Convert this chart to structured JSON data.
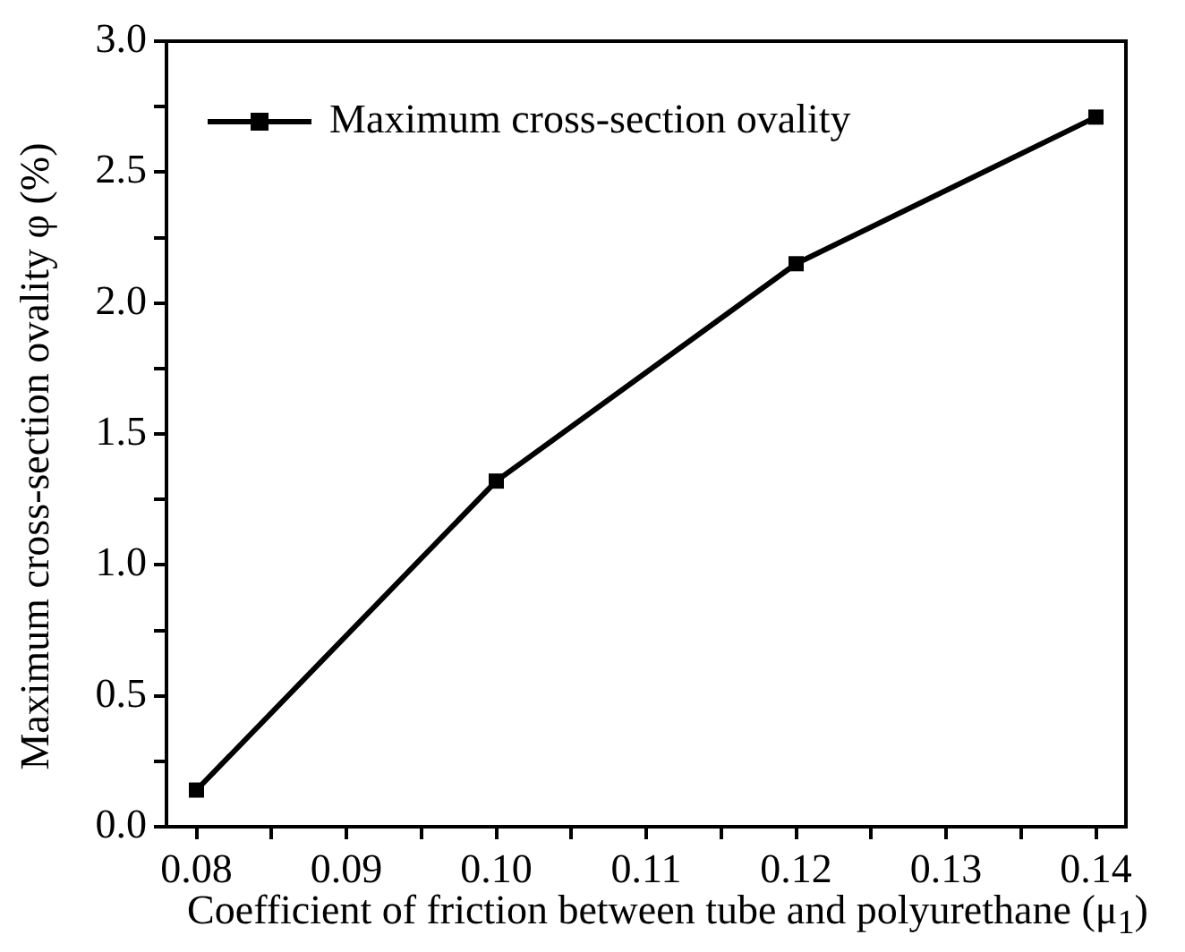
{
  "chart_data": {
    "type": "line",
    "xlabel": "Coefficient of friction between tube and polyurethane (μ$_{1}$)",
    "ylabel": "Maximum cross-section ovality φ (%)",
    "x": [
      0.08,
      0.1,
      0.12,
      0.14
    ],
    "series": [
      {
        "name": "Maximum cross-section ovality",
        "color": "#000000",
        "values": [
          0.14,
          1.32,
          2.15,
          2.71
        ]
      }
    ],
    "xlim": [
      0.078,
      0.142
    ],
    "xticks": [
      0.08,
      {
        "value": 0.085,
        "label": null
      },
      "0.09",
      {
        "value": 0.095,
        "label": null
      },
      {
        "value": 0.1,
        "label": "0.10"
      },
      {
        "value": 0.105,
        "label": null
      },
      0.11,
      {
        "value": 0.115,
        "label": null
      },
      0.12,
      {
        "value": 0.125,
        "label": null
      },
      0.13,
      {
        "value": 0.135,
        "label": null
      },
      0.14
    ],
    "ylim": [
      0,
      3
    ],
    "yticks": [
      {
        "value": 0,
        "label": "0.0"
      },
      {
        "value": 0.25,
        "label": null
      },
      0.5,
      {
        "value": 0.75,
        "label": null
      },
      {
        "value": 1,
        "label": "1.0"
      },
      {
        "value": 1.25,
        "label": null
      },
      1.5,
      {
        "value": 1.75,
        "label": null
      },
      {
        "value": 2,
        "label": "2.0"
      },
      {
        "value": 2.25,
        "label": null
      },
      2.5,
      {
        "value": 2.75,
        "label": null
      },
      {
        "value": 3,
        "label": "3.0"
      }
    ],
    "grid": false,
    "legend": "top left",
    "marker": "square",
    "line_style": "solid"
  }
}
